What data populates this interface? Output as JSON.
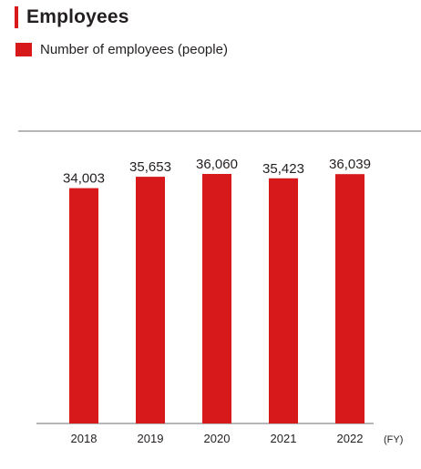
{
  "header": {
    "title": "Employees"
  },
  "colors": {
    "accent": "#d7191c",
    "bar": "#d7191c"
  },
  "chart_data": {
    "type": "bar",
    "title": "Employees",
    "categories": [
      "2018",
      "2019",
      "2020",
      "2021",
      "2022"
    ],
    "series": [
      {
        "name": "Number of employees (people)",
        "values": [
          34003,
          35653,
          36060,
          35423,
          36039
        ]
      }
    ],
    "value_labels": [
      "34,003",
      "35,653",
      "36,060",
      "35,423",
      "36,039"
    ],
    "x_unit_label": "(FY)",
    "legend_position": "top-left",
    "grid": false
  }
}
